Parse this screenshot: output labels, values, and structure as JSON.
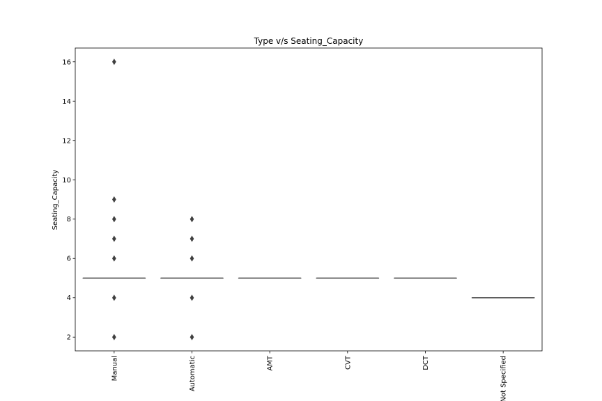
{
  "chart_data": {
    "type": "box",
    "title": "Type v/s Seating_Capacity",
    "xlabel": "",
    "ylabel": "Seating_Capacity",
    "ylim": [
      1.3,
      16.7
    ],
    "yticks": [
      2,
      4,
      6,
      8,
      10,
      12,
      14,
      16
    ],
    "grid": false,
    "categories": [
      "Manual",
      "Automatic",
      "AMT",
      "CVT",
      "DCT",
      "Not Specified"
    ],
    "boxes": [
      {
        "category": "Manual",
        "q1": 5,
        "median": 5,
        "q3": 5,
        "whisker_low": 5,
        "whisker_high": 5,
        "outliers": [
          2,
          4,
          6,
          7,
          8,
          9,
          16
        ]
      },
      {
        "category": "Automatic",
        "q1": 5,
        "median": 5,
        "q3": 5,
        "whisker_low": 5,
        "whisker_high": 5,
        "outliers": [
          2,
          4,
          6,
          7,
          8
        ]
      },
      {
        "category": "AMT",
        "q1": 5,
        "median": 5,
        "q3": 5,
        "whisker_low": 5,
        "whisker_high": 5,
        "outliers": []
      },
      {
        "category": "CVT",
        "q1": 5,
        "median": 5,
        "q3": 5,
        "whisker_low": 5,
        "whisker_high": 5,
        "outliers": []
      },
      {
        "category": "DCT",
        "q1": 5,
        "median": 5,
        "q3": 5,
        "whisker_low": 5,
        "whisker_high": 5,
        "outliers": []
      },
      {
        "category": "Not Specified",
        "q1": 4,
        "median": 4,
        "q3": 4,
        "whisker_low": 4,
        "whisker_high": 4,
        "outliers": []
      }
    ],
    "colors": {
      "box_line": "#3f3f3f",
      "outlier": "#3f3f3f",
      "axes": "#000000"
    }
  }
}
